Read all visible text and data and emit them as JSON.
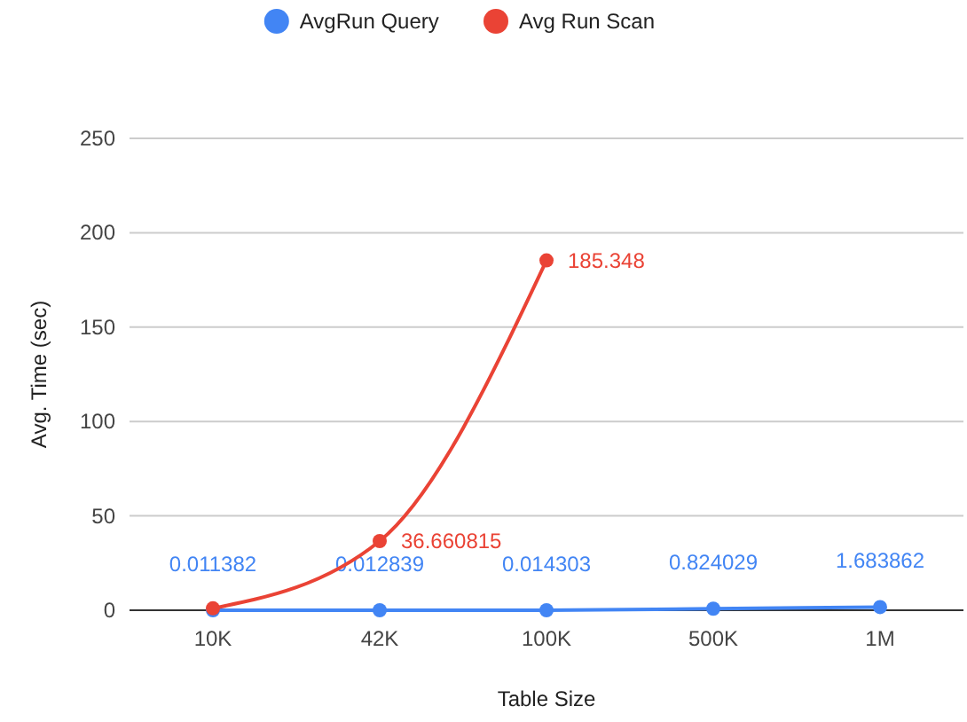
{
  "chart_data": {
    "type": "line",
    "xlabel": "Table Size",
    "ylabel": "Avg. Time (sec)",
    "categories": [
      "10K",
      "42K",
      "100K",
      "500K",
      "1M"
    ],
    "series": [
      {
        "name": "AvgRun Query",
        "color": "#4285f4",
        "values": [
          0.011382,
          0.012839,
          0.014303,
          0.824029,
          1.683862
        ],
        "value_labels": [
          "0.011382",
          "0.012839",
          "0.014303",
          "0.824029",
          "1.683862"
        ]
      },
      {
        "name": "Avg Run Scan",
        "color": "#ea4335",
        "values": [
          1,
          36.660815,
          185.348,
          null,
          null
        ],
        "value_labels": [
          null,
          "36.660815",
          "185.348",
          null,
          null
        ]
      }
    ],
    "ylim": [
      0,
      250
    ],
    "yticks": [
      0,
      50,
      100,
      150,
      200,
      250
    ],
    "grid": "y",
    "legend": "top",
    "marker": "circle"
  }
}
